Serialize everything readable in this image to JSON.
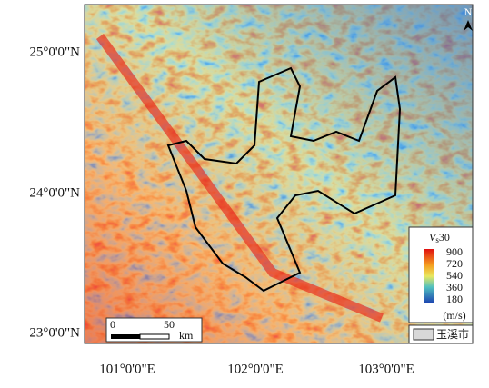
{
  "map": {
    "lat_labels": [
      "25°0'0\"N",
      "24°0'0\"N",
      "23°0'0\"N"
    ],
    "lon_labels": [
      "101°0'0\"E",
      "102°0'0\"E",
      "103°0'0\"E"
    ],
    "north": "N",
    "scale_bar": {
      "start": "0",
      "end": "50",
      "unit": "km"
    },
    "legend": {
      "title_main": "V",
      "title_sub": "s",
      "title_rest": "30",
      "ticks": [
        900,
        720,
        540,
        360,
        180
      ],
      "unit": "(m/s)",
      "boundary": "玉溪市"
    }
  }
}
